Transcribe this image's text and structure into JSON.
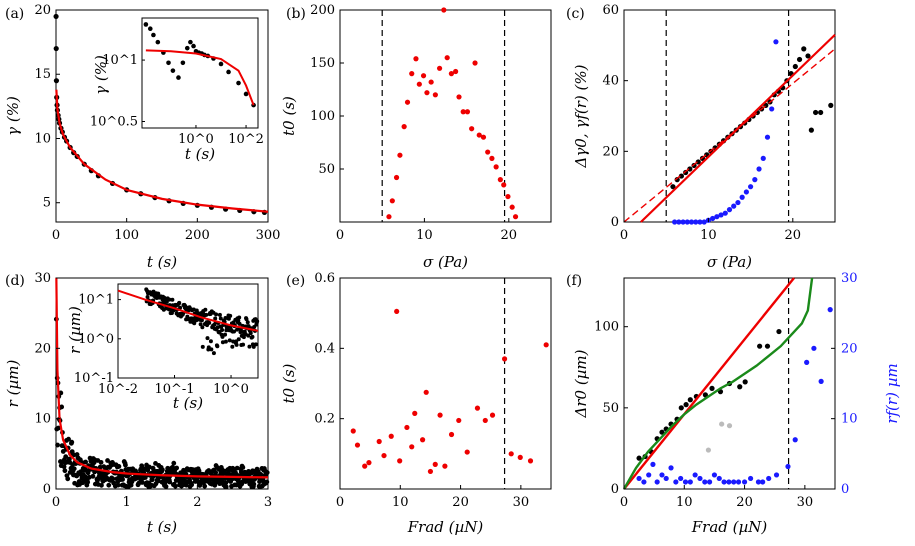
{
  "chart_data": [
    {
      "panel": "(a)",
      "type": "line",
      "xlabel": "t (s)",
      "ylabel": "γ (%)",
      "xlim": [
        0,
        300
      ],
      "ylim": [
        3.5,
        20
      ],
      "xticks": [
        0,
        100,
        200,
        300
      ],
      "yticks": [
        5,
        10,
        15,
        20
      ],
      "scatter": {
        "x": [
          0.1,
          0.3,
          0.6,
          1,
          1.5,
          2,
          3,
          4,
          5,
          7,
          9,
          12,
          15,
          20,
          25,
          30,
          40,
          50,
          60,
          80,
          100,
          120,
          140,
          160,
          180,
          200,
          220,
          240,
          260,
          280,
          295
        ],
        "y": [
          19.5,
          17,
          14.5,
          13.2,
          12.6,
          12.2,
          11.8,
          11.5,
          11.2,
          10.8,
          10.5,
          10.1,
          9.8,
          9.3,
          8.9,
          8.6,
          8.0,
          7.5,
          7.1,
          6.5,
          6.0,
          5.7,
          5.4,
          5.15,
          4.95,
          4.8,
          4.65,
          4.5,
          4.4,
          4.3,
          4.25
        ]
      },
      "fit": {
        "x": [
          0.5,
          2,
          5,
          10,
          20,
          40,
          70,
          100,
          150,
          200,
          250,
          300
        ],
        "y": [
          13.8,
          12.3,
          11.2,
          10.3,
          9.3,
          8.0,
          6.8,
          6.0,
          5.3,
          4.85,
          4.55,
          4.3
        ]
      },
      "inset": {
        "xlabel": "t (s)",
        "ylabel": "γ (%)",
        "xticks": [
          "10^0",
          "10^2"
        ],
        "yticks": [
          "10^0.5",
          "10^1"
        ],
        "scatter": {
          "x": [
            0.01,
            0.015,
            0.02,
            0.03,
            0.05,
            0.08,
            0.12,
            0.2,
            0.3,
            0.45,
            0.6,
            0.8,
            1,
            1.3,
            1.7,
            2.2,
            3,
            5,
            10,
            20,
            50,
            100,
            200
          ],
          "y": [
            19.5,
            18,
            16,
            14,
            11.5,
            9.5,
            8.2,
            7.2,
            9.5,
            12.5,
            14,
            13,
            11.8,
            11.5,
            11.3,
            11,
            10.8,
            10.3,
            9.3,
            8,
            6.5,
            5.3,
            4.3
          ]
        },
        "fit": {
          "x": [
            0.01,
            0.1,
            1,
            10,
            50,
            100,
            200
          ],
          "y": [
            12,
            11.8,
            11.3,
            10.2,
            8.2,
            6.2,
            4.3
          ]
        }
      }
    },
    {
      "panel": "(b)",
      "type": "scatter",
      "xlabel": "σ (Pa)",
      "ylabel": "t0 (s)",
      "xlim": [
        0,
        25
      ],
      "ylim": [
        0,
        200
      ],
      "xticks": [
        0,
        10,
        20
      ],
      "yticks": [
        50,
        100,
        150,
        200
      ],
      "vlines": [
        5,
        19.5
      ],
      "points": {
        "x": [
          5.8,
          6.2,
          6.7,
          7.1,
          7.6,
          8.0,
          8.5,
          9.0,
          9.4,
          9.9,
          10.3,
          10.8,
          11.3,
          11.8,
          12.3,
          12.7,
          13.2,
          13.7,
          14.1,
          14.6,
          15.1,
          15.6,
          16.0,
          16.5,
          17.0,
          17.5,
          18.0,
          18.5,
          19.0,
          19.4,
          19.9,
          20.4,
          20.8
        ],
        "y": [
          5,
          20,
          42,
          63,
          90,
          113,
          140,
          154,
          130,
          138,
          122,
          132,
          120,
          145,
          200,
          155,
          140,
          142,
          118,
          104,
          104,
          88,
          150,
          82,
          80,
          66,
          60,
          52,
          40,
          35,
          24,
          14,
          5
        ]
      }
    },
    {
      "panel": "(c)",
      "type": "scatter",
      "xlabel": "σ (Pa)",
      "ylabel": "Δγ0, γf(r) (%)",
      "xlim": [
        0,
        25
      ],
      "ylim": [
        0,
        60
      ],
      "xticks": [
        0,
        10,
        20
      ],
      "yticks": [
        0,
        20,
        40,
        60
      ],
      "vlines": [
        5,
        19.5
      ],
      "black": {
        "x": [
          5.8,
          6.3,
          6.8,
          7.3,
          7.8,
          8.3,
          8.8,
          9.3,
          9.8,
          10.3,
          10.8,
          11.3,
          11.8,
          12.3,
          12.8,
          13.3,
          13.8,
          14.3,
          14.8,
          15.3,
          15.8,
          16.3,
          16.8,
          17.3,
          17.8,
          18.3,
          18.8,
          19.3,
          19.8,
          20.3,
          20.8,
          21.3,
          21.8,
          22.2,
          22.7,
          23.3,
          24.5
        ],
        "y": [
          10,
          12,
          13,
          14,
          15,
          16,
          17,
          18,
          19,
          20,
          21,
          22,
          23,
          24,
          25,
          26,
          27,
          28,
          29,
          30,
          31,
          32,
          33,
          34,
          36,
          37,
          38,
          40,
          42,
          44,
          46,
          49,
          47,
          26,
          31,
          31,
          33
        ]
      },
      "blue": {
        "x": [
          6.0,
          6.5,
          7.0,
          7.5,
          8.0,
          8.5,
          9.0,
          9.5,
          10.0,
          10.5,
          11.0,
          11.5,
          12.0,
          12.5,
          13.0,
          13.5,
          14.0,
          14.5,
          15.0,
          15.5,
          16.0,
          16.5,
          17.0,
          17.5,
          18.0
        ],
        "y": [
          0,
          0,
          0,
          0,
          0,
          0,
          0,
          0,
          0.5,
          1,
          1.5,
          2,
          2.5,
          3.5,
          4.5,
          5.5,
          7,
          8.5,
          10,
          12,
          15,
          18,
          24,
          32,
          51
        ]
      },
      "solid_fit": {
        "x": [
          2.0,
          25
        ],
        "y": [
          0,
          53
        ]
      },
      "dashed_fit": {
        "x": [
          0,
          25
        ],
        "y": [
          0,
          49
        ]
      }
    },
    {
      "panel": "(d)",
      "type": "scatter",
      "xlabel": "t (s)",
      "ylabel": "r (µm)",
      "xlim": [
        0,
        3
      ],
      "ylim": [
        0,
        30
      ],
      "xticks": [
        0,
        1,
        2,
        3
      ],
      "yticks": [
        0,
        10,
        20,
        30
      ],
      "fit": {
        "x": [
          0.005,
          0.02,
          0.05,
          0.1,
          0.2,
          0.3,
          0.5,
          0.8,
          1,
          1.5,
          2,
          2.5,
          3
        ],
        "y": [
          30,
          17,
          10,
          7,
          4.8,
          3.8,
          2.9,
          2.4,
          2.2,
          1.95,
          1.8,
          1.72,
          1.65
        ]
      },
      "inset": {
        "xlabel": "t (s)",
        "ylabel": "r (µm)",
        "xticks": [
          "10^-2",
          "10^-1",
          "10^0"
        ],
        "yticks": [
          "10^-1",
          "10^0",
          "10^1"
        ],
        "fit": {
          "x": [
            0.01,
            0.03,
            0.1,
            0.3,
            1,
            3
          ],
          "y": [
            17,
            10,
            6,
            3.5,
            2.2,
            1.6
          ]
        }
      }
    },
    {
      "panel": "(e)",
      "type": "scatter",
      "xlabel": "Frad (µN)",
      "ylabel": "t0 (s)",
      "xlim": [
        0,
        35
      ],
      "ylim": [
        0,
        0.6
      ],
      "xticks": [
        0,
        10,
        20,
        30
      ],
      "yticks": [
        0.2,
        0.4,
        0.6
      ],
      "vlines": [
        27.3
      ],
      "points": {
        "x": [
          2.2,
          2.9,
          4.1,
          4.8,
          6.5,
          7.3,
          8.5,
          9.4,
          9.9,
          11.1,
          11.9,
          12.4,
          13.7,
          14.3,
          15.0,
          15.8,
          16.6,
          17.4,
          18.5,
          19.7,
          21.1,
          22.8,
          24.1,
          25.3,
          27.3,
          28.4,
          29.9,
          31.6,
          34.2
        ],
        "y": [
          0.165,
          0.125,
          0.065,
          0.075,
          0.135,
          0.095,
          0.15,
          0.505,
          0.08,
          0.175,
          0.12,
          0.215,
          0.14,
          0.275,
          0.05,
          0.07,
          0.21,
          0.065,
          0.155,
          0.195,
          0.105,
          0.23,
          0.195,
          0.21,
          0.37,
          0.1,
          0.09,
          0.08,
          0.41
        ]
      }
    },
    {
      "panel": "(f)",
      "type": "scatter",
      "xlabel": "Frad (µN)",
      "ylabel": "Δr0 (µm)",
      "ylabel_right": "rf(r) µm",
      "xlim": [
        0,
        35
      ],
      "ylim": [
        0,
        130
      ],
      "ylim_right": [
        0,
        30
      ],
      "xticks": [
        0,
        10,
        20,
        30
      ],
      "yticks": [
        0,
        50,
        100
      ],
      "yticks_right": [
        0,
        10,
        20,
        30
      ],
      "vlines": [
        27.3
      ],
      "black": {
        "x": [
          2.5,
          3.5,
          4.5,
          5.5,
          6.3,
          7.0,
          7.8,
          8.8,
          9.5,
          10.3,
          11.0,
          12.0,
          13.5,
          14.6,
          16.0,
          17.5,
          19.2,
          20.1,
          22.5,
          23.8,
          25.7
        ],
        "y": [
          19,
          20,
          23,
          31,
          35,
          37,
          40,
          43,
          50,
          52,
          55,
          57,
          58,
          62,
          60,
          65,
          63,
          66,
          88,
          88,
          97
        ]
      },
      "gray": {
        "x": [
          14.0,
          16.2,
          17.5
        ],
        "y": [
          24,
          40,
          39
        ]
      },
      "blue": {
        "x": [
          2.5,
          3.3,
          4.1,
          4.8,
          5.5,
          6.3,
          7.0,
          7.8,
          8.6,
          9.4,
          10.2,
          11.0,
          11.8,
          12.6,
          13.4,
          14.2,
          15.0,
          15.8,
          16.6,
          17.4,
          18.2,
          19.0,
          20.0,
          21.0,
          22.3,
          23.0,
          24.0,
          25.3,
          27.2,
          28.4,
          30.3,
          31.5,
          32.7,
          34.2
        ],
        "y": [
          1.5,
          1,
          2,
          3.5,
          1,
          2,
          1.5,
          3,
          1,
          1.5,
          1,
          1,
          2,
          1.5,
          1,
          1,
          2,
          1.5,
          1,
          1,
          1,
          1,
          1,
          1.5,
          1,
          1,
          1.5,
          2,
          3.2,
          7,
          18,
          20,
          15.3,
          25.5
        ]
      },
      "red_line": {
        "x": [
          0,
          28.2
        ],
        "y": [
          0,
          130
        ]
      },
      "green_line": {
        "x": [
          0,
          2,
          4,
          6,
          8,
          10,
          12,
          14,
          16,
          18,
          20,
          22,
          24,
          26,
          28,
          29.5,
          30.5,
          31.2
        ],
        "y": [
          0,
          13,
          23,
          31,
          39,
          46,
          52,
          57,
          62,
          66,
          71,
          76,
          82,
          88,
          96,
          102,
          110,
          130
        ]
      }
    }
  ]
}
